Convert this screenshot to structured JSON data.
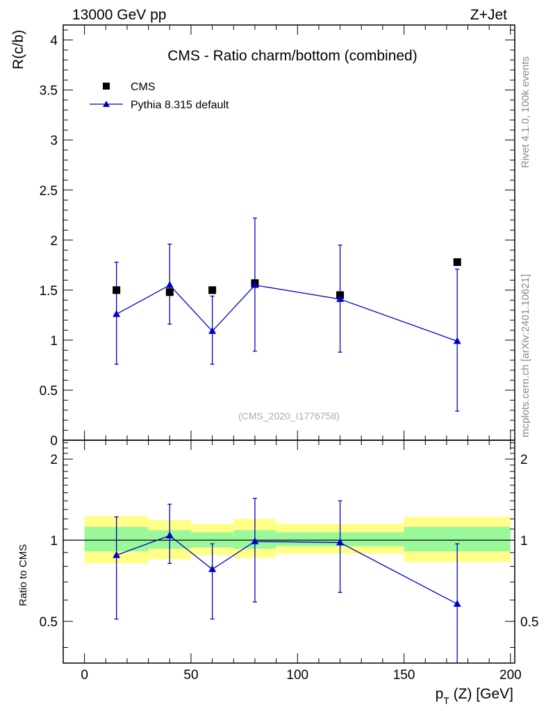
{
  "header": {
    "left": "13000 GeV pp",
    "right": "Z+Jet"
  },
  "side": {
    "top": "Rivet 4.1.0,  100k events",
    "bottom": "mcplots.cern.ch [arXiv:2401.10621]"
  },
  "chart_data": [
    {
      "panel": "main",
      "type": "scatter",
      "title": "CMS - Ratio charm/bottom (combined)",
      "ylabel": "R(c/b)",
      "xlim": [
        -10,
        202
      ],
      "ylim": [
        0,
        4.15
      ],
      "yticks": [
        0,
        0.5,
        1,
        1.5,
        2,
        2.5,
        3,
        3.5,
        4
      ],
      "ytick_labels": [
        "0",
        "0.5",
        "1",
        "1.5",
        "2",
        "2.5",
        "3",
        "3.5",
        "4"
      ],
      "watermark": "(CMS_2020_I1776758)",
      "legend": [
        {
          "name": "CMS",
          "marker": "square"
        },
        {
          "name": "Pythia 8.315 default",
          "marker": "triangle"
        }
      ],
      "series": [
        {
          "name": "CMS",
          "color": "#000000",
          "x": [
            15,
            40,
            60,
            80,
            120,
            175
          ],
          "y": [
            1.5,
            1.48,
            1.5,
            1.57,
            1.45,
            1.78
          ]
        },
        {
          "name": "Pythia 8.315 default",
          "color": "#0000cc",
          "x": [
            15,
            40,
            60,
            80,
            120,
            175
          ],
          "y": [
            1.26,
            1.55,
            1.09,
            1.55,
            1.41,
            0.99
          ],
          "yerr_low": [
            0.76,
            1.16,
            0.76,
            0.89,
            0.88,
            0.29
          ],
          "yerr_high": [
            1.78,
            1.96,
            1.44,
            2.22,
            1.95,
            1.71
          ]
        }
      ]
    },
    {
      "panel": "ratio",
      "type": "scatter",
      "ylabel": "Ratio to CMS",
      "xlabel": "p_T (Z) [GeV]",
      "xlabel_main": "p",
      "xlabel_sub": "T",
      "xlabel_rest": " (Z) [GeV]",
      "xlim": [
        -10,
        202
      ],
      "ylim": [
        0.35,
        2.35
      ],
      "xticks": [
        0,
        50,
        100,
        150,
        200
      ],
      "xtick_labels": [
        "0",
        "50",
        "100",
        "150",
        "200"
      ],
      "yticks": [
        0.5,
        1,
        2
      ],
      "ytick_labels": [
        "0.5",
        "1",
        "2"
      ],
      "bands": [
        {
          "xlo": 0,
          "xhi": 30,
          "yellow": [
            0.82,
            1.23
          ],
          "green": [
            0.91,
            1.12
          ]
        },
        {
          "xlo": 30,
          "xhi": 50,
          "yellow": [
            0.85,
            1.19
          ],
          "green": [
            0.93,
            1.09
          ]
        },
        {
          "xlo": 50,
          "xhi": 70,
          "yellow": [
            0.88,
            1.15
          ],
          "green": [
            0.94,
            1.07
          ]
        },
        {
          "xlo": 70,
          "xhi": 90,
          "yellow": [
            0.86,
            1.2
          ],
          "green": [
            0.93,
            1.09
          ]
        },
        {
          "xlo": 90,
          "xhi": 150,
          "yellow": [
            0.89,
            1.15
          ],
          "green": [
            0.95,
            1.07
          ]
        },
        {
          "xlo": 150,
          "xhi": 200,
          "yellow": [
            0.83,
            1.22
          ],
          "green": [
            0.91,
            1.12
          ]
        }
      ],
      "series": [
        {
          "name": "Pythia 8.315 default",
          "color": "#0000cc",
          "x": [
            15,
            40,
            60,
            80,
            120,
            175
          ],
          "y": [
            0.88,
            1.04,
            0.78,
            0.99,
            0.98,
            0.58
          ],
          "yerr_low": [
            0.51,
            0.82,
            0.51,
            0.59,
            0.64,
            0.35
          ],
          "yerr_high": [
            1.22,
            1.36,
            0.97,
            1.43,
            1.4,
            0.97
          ]
        }
      ]
    }
  ]
}
